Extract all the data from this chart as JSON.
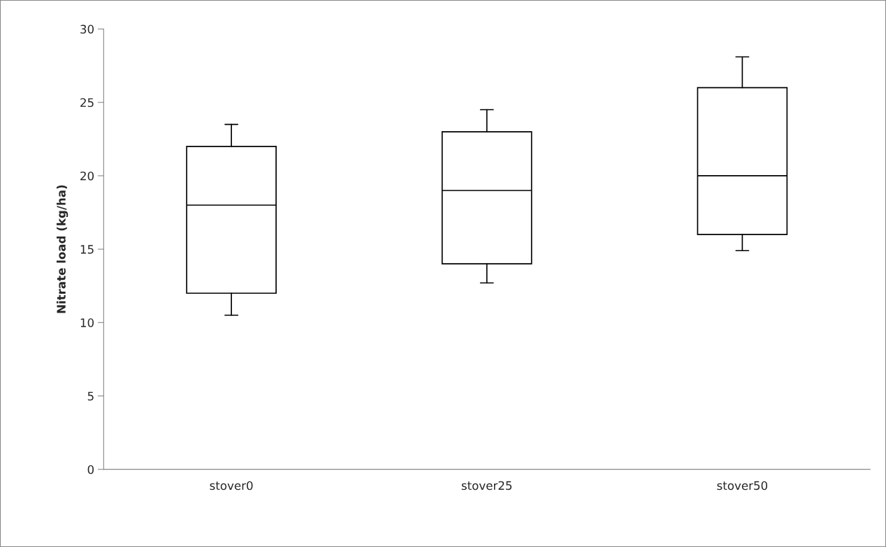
{
  "chart_data": {
    "type": "box",
    "ylabel": "Nitrate load (kg/ha)",
    "categories": [
      "stover0",
      "stover25",
      "stover50"
    ],
    "boxes": [
      {
        "low": 10.5,
        "q1": 12,
        "median": 18,
        "q3": 22,
        "high": 23.5
      },
      {
        "low": 12.7,
        "q1": 14,
        "median": 19,
        "q3": 23,
        "high": 24.5
      },
      {
        "low": 14.9,
        "q1": 16,
        "median": 20,
        "q3": 26,
        "high": 28.1
      }
    ],
    "ylim": [
      0,
      30
    ],
    "yticks": [
      0,
      5,
      10,
      15,
      20,
      25,
      30
    ],
    "grid": false
  }
}
